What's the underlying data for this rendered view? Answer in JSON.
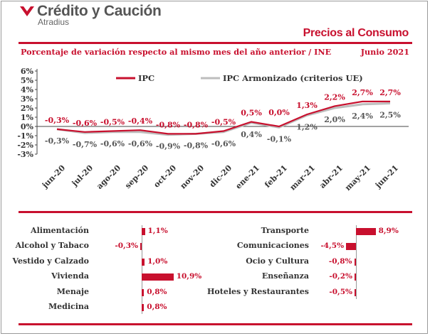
{
  "header": {
    "brand": "Crédito y Caución",
    "subbrand": "Atradius",
    "report_title": "Precios al Consumo",
    "subtitle": "Porcentaje de variación respecto al mismo mes del año anterior / INE",
    "period": "Junio 2021"
  },
  "colors": {
    "accent": "#c8102e",
    "secondary": "#bdbdbd",
    "text": "#333333"
  },
  "chart_data": [
    {
      "type": "line",
      "categories": [
        "jun-20",
        "jul-20",
        "ago-20",
        "sep-20",
        "oct-20",
        "nov-20",
        "dic-20",
        "ene-21",
        "feb-21",
        "mar-21",
        "abr-21",
        "may-21",
        "jun-21"
      ],
      "series": [
        {
          "name": "IPC",
          "values": [
            -0.3,
            -0.6,
            -0.5,
            -0.4,
            -0.8,
            -0.8,
            -0.5,
            0.5,
            0.0,
            1.3,
            2.2,
            2.7,
            2.7
          ],
          "labels": [
            "-0,3%",
            "-0,6%",
            "-0,5%",
            "-0,4%",
            "-0,8%",
            "-0,8%",
            "-0,5%",
            "0,5%",
            "0,0%",
            "1,3%",
            "2,2%",
            "2,7%",
            "2,7%"
          ]
        },
        {
          "name": "IPC Armonizado (criterios UE)",
          "values": [
            -0.3,
            -0.7,
            -0.6,
            -0.6,
            -0.9,
            -0.8,
            -0.6,
            0.4,
            -0.1,
            1.2,
            2.0,
            2.4,
            2.5
          ],
          "labels": [
            "-0,3%",
            "-0,7%",
            "-0,6%",
            "-0,6%",
            "-0,9%",
            "-0,8%",
            "-0,6%",
            "0,4%",
            "-0,1%",
            "1,2%",
            "2,0%",
            "2,4%",
            "2,5%"
          ]
        }
      ],
      "ylim": [
        -3,
        6
      ],
      "yticks": [
        "-3%",
        "-2%",
        "-1%",
        "0%",
        "1%",
        "2%",
        "3%",
        "4%",
        "5%",
        "6%"
      ],
      "grid": false,
      "legend": "top"
    },
    {
      "type": "bar",
      "orientation": "horizontal",
      "categories": [
        "Alimentación",
        "Alcohol y Tabaco",
        "Vestido y Calzado",
        "Vivienda",
        "Menaje",
        "Medicina"
      ],
      "values": [
        1.1,
        -0.3,
        1.0,
        10.9,
        0.8,
        0.8
      ],
      "labels": [
        "1,1%",
        "-0,3%",
        "1,0%",
        "10,9%",
        "0,8%",
        "0,8%"
      ]
    },
    {
      "type": "bar",
      "orientation": "horizontal",
      "categories": [
        "Transporte",
        "Comunicaciones",
        "Ocio y Cultura",
        "Enseñanza",
        "Hoteles y Restaurantes"
      ],
      "values": [
        8.9,
        -4.5,
        -0.8,
        -0.2,
        -0.5
      ],
      "labels": [
        "8,9%",
        "-4,5%",
        "-0,8%",
        "-0,2%",
        "-0,5%"
      ]
    }
  ]
}
